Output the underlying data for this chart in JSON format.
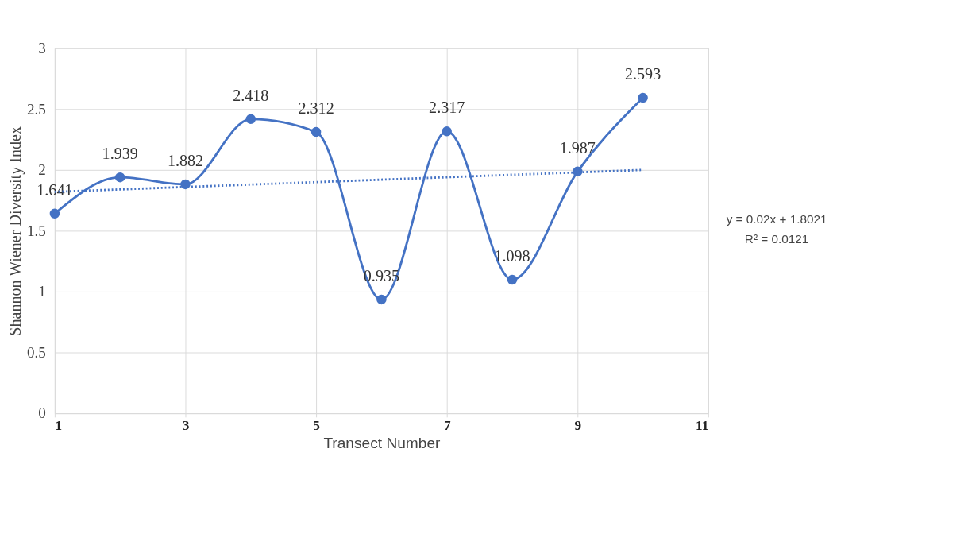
{
  "chart_data": {
    "type": "line",
    "xlabel": "Transect Number",
    "ylabel": "Shannon Wiener Diversity Index",
    "x": [
      1,
      2,
      3,
      4,
      5,
      6,
      7,
      8,
      9,
      10
    ],
    "series": [
      {
        "color": "#4472c4",
        "marker": "circle",
        "line_style": "solid",
        "values": [
          1.641,
          1.939,
          1.882,
          2.418,
          2.312,
          0.935,
          2.317,
          1.098,
          1.987,
          2.593
        ],
        "value_labels": [
          "1.641",
          "1.939",
          "1.882",
          "2.418",
          "2.312",
          "0.935",
          "2.317",
          "1.098",
          "1.987",
          "2.593"
        ]
      },
      {
        "color": "#4472c4",
        "marker": "none",
        "line_style": "dotted",
        "x": [
          1,
          10
        ],
        "values": [
          1.82,
          2.0
        ]
      }
    ],
    "xlim": [
      1,
      11
    ],
    "xticks": [
      1,
      3,
      5,
      7,
      9,
      11
    ],
    "ylim": [
      0,
      3
    ],
    "yticks": [
      0,
      0.5,
      1,
      1.5,
      2,
      2.5,
      3
    ],
    "grid": true,
    "annotations": [
      "y = 0.02x + 1.8021",
      "R² = 0.0121"
    ]
  }
}
